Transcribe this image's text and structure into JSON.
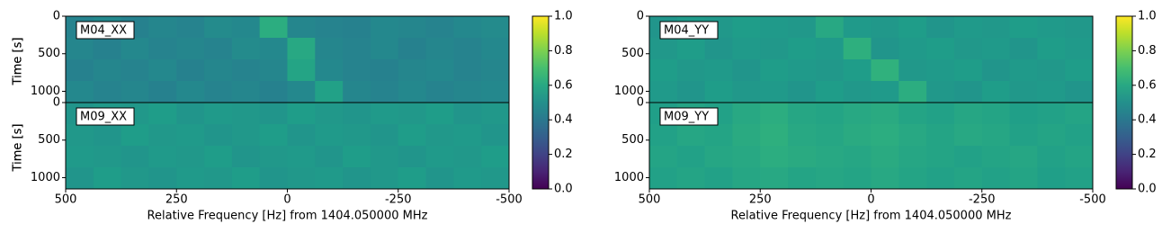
{
  "chart_data": [
    {
      "type": "heatmap",
      "colormap": "viridis",
      "xlabel": "Relative Frequency [Hz] from 1404.050000 MHz",
      "xlim": [
        500,
        -500
      ],
      "xticks": [
        500,
        250,
        0,
        -250,
        -500
      ],
      "clim": [
        0,
        1
      ],
      "cticks": [
        {
          "value": 0,
          "label": "0.0"
        },
        0.2,
        0.4,
        0.6,
        0.8,
        {
          "value": 1,
          "label": "1.0"
        }
      ],
      "panels": [
        {
          "label": "M04_XX",
          "ylabel": "Time [s]",
          "ylim": [
            0,
            1150
          ],
          "yticks": [
            0,
            500,
            1000
          ],
          "z": [
            [
              0.45,
              0.47,
              0.44,
              0.46,
              0.45,
              0.48,
              0.47,
              0.62,
              0.46,
              0.45,
              0.44,
              0.47,
              0.46,
              0.45,
              0.47,
              0.48
            ],
            [
              0.46,
              0.44,
              0.47,
              0.45,
              0.46,
              0.45,
              0.48,
              0.47,
              0.6,
              0.46,
              0.45,
              0.47,
              0.44,
              0.46,
              0.45,
              0.47
            ],
            [
              0.44,
              0.46,
              0.45,
              0.47,
              0.44,
              0.46,
              0.45,
              0.46,
              0.58,
              0.47,
              0.45,
              0.44,
              0.46,
              0.47,
              0.45,
              0.46
            ],
            [
              0.47,
              0.45,
              0.46,
              0.44,
              0.47,
              0.45,
              0.46,
              0.44,
              0.47,
              0.57,
              0.46,
              0.45,
              0.47,
              0.45,
              0.46,
              0.47
            ]
          ]
        },
        {
          "label": "M09_XX",
          "ylabel": "Time [s]",
          "ylim": [
            0,
            1150
          ],
          "yticks": [
            0,
            500,
            1000
          ],
          "z": [
            [
              0.52,
              0.54,
              0.53,
              0.55,
              0.52,
              0.54,
              0.53,
              0.52,
              0.55,
              0.53,
              0.52,
              0.54,
              0.53,
              0.55,
              0.52,
              0.53
            ],
            [
              0.53,
              0.52,
              0.55,
              0.53,
              0.54,
              0.52,
              0.53,
              0.55,
              0.52,
              0.54,
              0.53,
              0.52,
              0.55,
              0.53,
              0.54,
              0.52
            ],
            [
              0.54,
              0.53,
              0.52,
              0.54,
              0.53,
              0.55,
              0.52,
              0.53,
              0.54,
              0.52,
              0.55,
              0.53,
              0.52,
              0.54,
              0.53,
              0.55
            ],
            [
              0.52,
              0.55,
              0.53,
              0.52,
              0.54,
              0.53,
              0.55,
              0.52,
              0.53,
              0.54,
              0.52,
              0.53,
              0.55,
              0.52,
              0.54,
              0.53
            ]
          ]
        }
      ]
    },
    {
      "type": "heatmap",
      "colormap": "viridis",
      "xlabel": "Relative Frequency [Hz] from 1404.050000 MHz",
      "xlim": [
        500,
        -500
      ],
      "xticks": [
        500,
        250,
        0,
        -250,
        -500
      ],
      "clim": [
        0,
        1
      ],
      "cticks": [
        {
          "value": 0,
          "label": "0.0"
        },
        0.2,
        0.4,
        0.6,
        0.8,
        {
          "value": 1,
          "label": "1.0"
        }
      ],
      "panels": [
        {
          "label": "M04_YY",
          "ylabel": "Time [s]",
          "ylim": [
            0,
            1150
          ],
          "yticks": [
            0,
            500,
            1000
          ],
          "z": [
            [
              0.52,
              0.54,
              0.53,
              0.55,
              0.54,
              0.53,
              0.6,
              0.54,
              0.53,
              0.55,
              0.52,
              0.54,
              0.53,
              0.55,
              0.54,
              0.53
            ],
            [
              0.53,
              0.55,
              0.52,
              0.54,
              0.53,
              0.55,
              0.54,
              0.63,
              0.52,
              0.54,
              0.55,
              0.53,
              0.54,
              0.52,
              0.55,
              0.54
            ],
            [
              0.55,
              0.53,
              0.54,
              0.52,
              0.55,
              0.54,
              0.53,
              0.55,
              0.64,
              0.53,
              0.54,
              0.55,
              0.52,
              0.54,
              0.53,
              0.55
            ],
            [
              0.54,
              0.52,
              0.55,
              0.53,
              0.54,
              0.52,
              0.55,
              0.53,
              0.54,
              0.62,
              0.53,
              0.52,
              0.55,
              0.53,
              0.54,
              0.52
            ]
          ]
        },
        {
          "label": "M09_YY",
          "ylabel": "Time [s]",
          "ylim": [
            0,
            1150
          ],
          "yticks": [
            0,
            500,
            1000
          ],
          "z": [
            [
              0.56,
              0.58,
              0.57,
              0.6,
              0.62,
              0.59,
              0.58,
              0.6,
              0.61,
              0.58,
              0.57,
              0.59,
              0.58,
              0.56,
              0.57,
              0.58
            ],
            [
              0.57,
              0.59,
              0.58,
              0.61,
              0.63,
              0.6,
              0.59,
              0.61,
              0.62,
              0.6,
              0.58,
              0.6,
              0.59,
              0.57,
              0.58,
              0.57
            ],
            [
              0.58,
              0.57,
              0.59,
              0.6,
              0.62,
              0.61,
              0.6,
              0.59,
              0.61,
              0.59,
              0.58,
              0.57,
              0.58,
              0.59,
              0.57,
              0.58
            ],
            [
              0.57,
              0.58,
              0.57,
              0.59,
              0.6,
              0.58,
              0.59,
              0.58,
              0.6,
              0.58,
              0.57,
              0.58,
              0.57,
              0.58,
              0.56,
              0.57
            ]
          ]
        }
      ]
    }
  ]
}
